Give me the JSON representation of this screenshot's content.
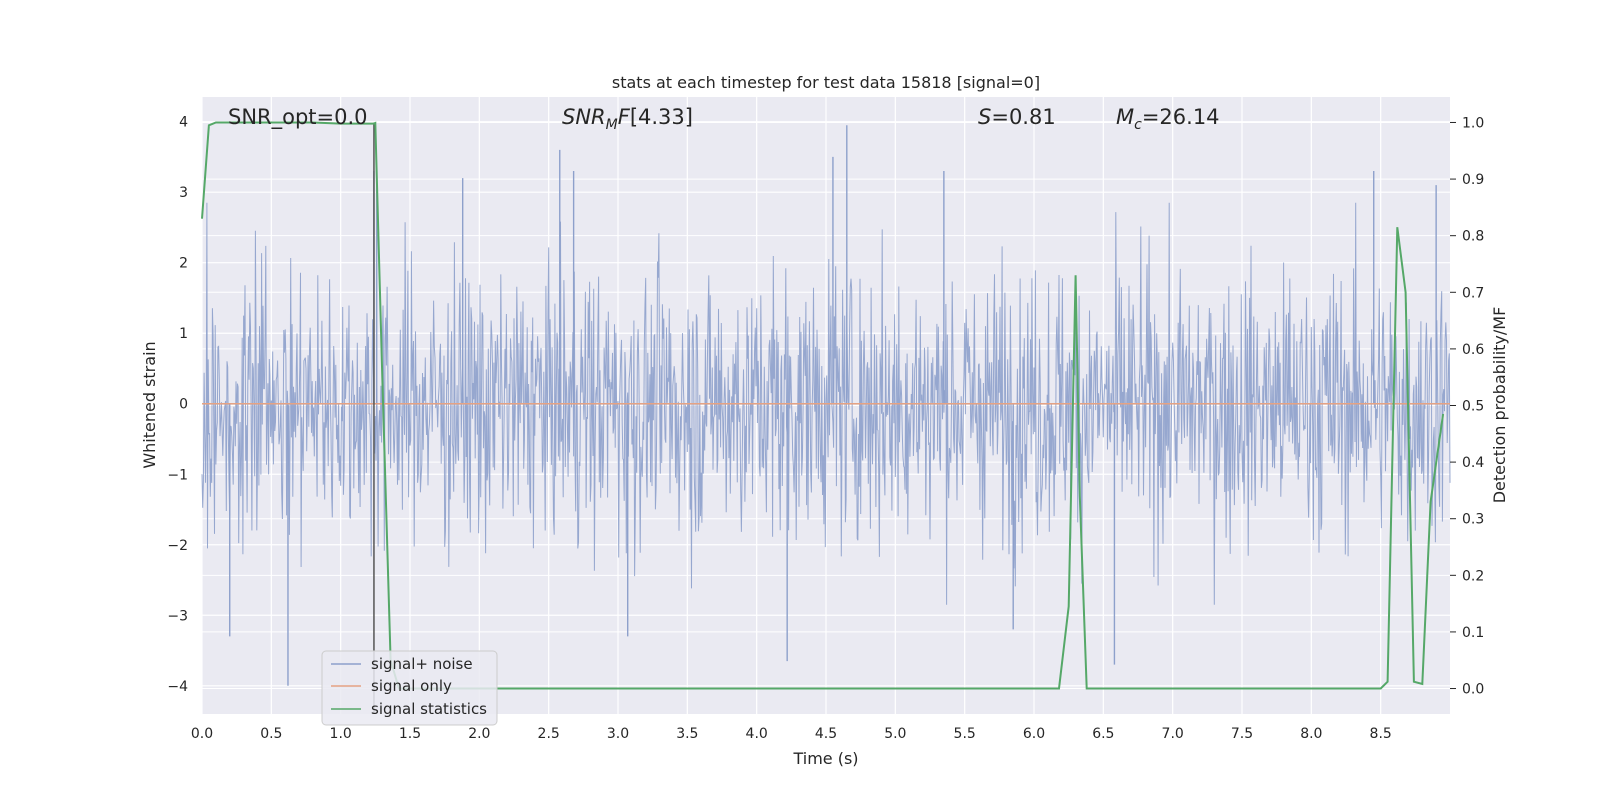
{
  "chart_data": {
    "type": "line",
    "title": "stats at each timestep for test data 15818 [signal=0]",
    "xlabel": "Time (s)",
    "ylabel": "Whitened strain",
    "y2label": "Detection probability/MF",
    "xlim": [
      0.0,
      9.0
    ],
    "ylim": [
      -4.4,
      4.35
    ],
    "y2lim": [
      -0.045,
      1.045
    ],
    "xticks": [
      0.0,
      0.5,
      1.0,
      1.5,
      2.0,
      2.5,
      3.0,
      3.5,
      4.0,
      4.5,
      5.0,
      5.5,
      6.0,
      6.5,
      7.0,
      7.5,
      8.0,
      8.5
    ],
    "xtick_labels": [
      "0.0",
      "0.5",
      "1.0",
      "1.5",
      "2.0",
      "2.5",
      "3.0",
      "3.5",
      "4.0",
      "4.5",
      "5.0",
      "5.5",
      "6.0",
      "6.5",
      "7.0",
      "7.5",
      "8.0",
      "8.5"
    ],
    "yticks": [
      4,
      3,
      2,
      1,
      0,
      -1,
      -2,
      -3,
      -4
    ],
    "ytick_labels": [
      "4",
      "3",
      "2",
      "1",
      "0",
      "−1",
      "−2",
      "−3",
      "−4"
    ],
    "y2ticks": [
      1.0,
      0.9,
      0.8,
      0.7,
      0.6,
      0.5,
      0.4,
      0.3,
      0.2,
      0.1,
      0.0
    ],
    "y2tick_labels": [
      "1.0",
      "0.9",
      "0.8",
      "0.7",
      "0.6",
      "0.5",
      "0.4",
      "0.3",
      "0.2",
      "0.1",
      "0.0"
    ],
    "grid": true,
    "annotations": {
      "snr_opt": "SNR_opt=0.0",
      "snr_mf": "[4.33]",
      "s_value": "=0.81",
      "mc_value": "=26.14"
    },
    "vline_x": 1.24,
    "series": [
      {
        "name": "signal+ noise",
        "color": "#8da0cb",
        "kind": "noise",
        "t_range": [
          0.0,
          9.0
        ],
        "sigma": 0.95,
        "spike_peaks": [
          {
            "t": 1.24,
            "v": 3.3
          },
          {
            "t": 1.26,
            "v": 3.2
          },
          {
            "t": 1.88,
            "v": 3.2
          },
          {
            "t": 2.58,
            "v": 3.6
          },
          {
            "t": 2.68,
            "v": 3.3
          },
          {
            "t": 4.65,
            "v": 3.95
          },
          {
            "t": 4.55,
            "v": 3.5
          },
          {
            "t": 5.35,
            "v": 3.3
          },
          {
            "t": 8.45,
            "v": 3.3
          },
          {
            "t": 8.9,
            "v": 3.1
          },
          {
            "t": 0.62,
            "v": -4.0
          },
          {
            "t": 4.22,
            "v": -3.65
          },
          {
            "t": 6.58,
            "v": -3.7
          },
          {
            "t": 0.2,
            "v": -3.3
          },
          {
            "t": 3.07,
            "v": -3.3
          },
          {
            "t": 5.85,
            "v": -3.2
          }
        ]
      },
      {
        "name": "signal only",
        "color": "#e5a283",
        "kind": "flat",
        "value": 0.0
      },
      {
        "name": "signal statistics",
        "color": "#55a868",
        "kind": "line",
        "axis": "right",
        "x": [
          0.0,
          0.05,
          0.1,
          0.15,
          0.2,
          0.4,
          0.6,
          0.8,
          1.0,
          1.1,
          1.2,
          1.24,
          1.25,
          1.3,
          1.36,
          1.42,
          1.5,
          2.0,
          3.0,
          4.0,
          5.0,
          6.0,
          6.18,
          6.25,
          6.3,
          6.33,
          6.38,
          6.5,
          7.0,
          8.0,
          8.5,
          8.55,
          8.62,
          8.68,
          8.74,
          8.8,
          8.86,
          8.95
        ],
        "y": [
          0.83,
          0.995,
          1.0,
          1.0,
          1.0,
          1.0,
          1.0,
          1.0,
          0.998,
          0.998,
          0.998,
          0.998,
          0.999,
          0.55,
          0.05,
          0.0,
          0.0,
          0.0,
          0.0,
          0.0,
          0.0,
          0.0,
          0.0,
          0.145,
          0.73,
          0.34,
          0.0,
          0.0,
          0.0,
          0.0,
          0.0,
          0.012,
          0.815,
          0.7,
          0.012,
          0.008,
          0.33,
          0.485
        ]
      }
    ]
  }
}
